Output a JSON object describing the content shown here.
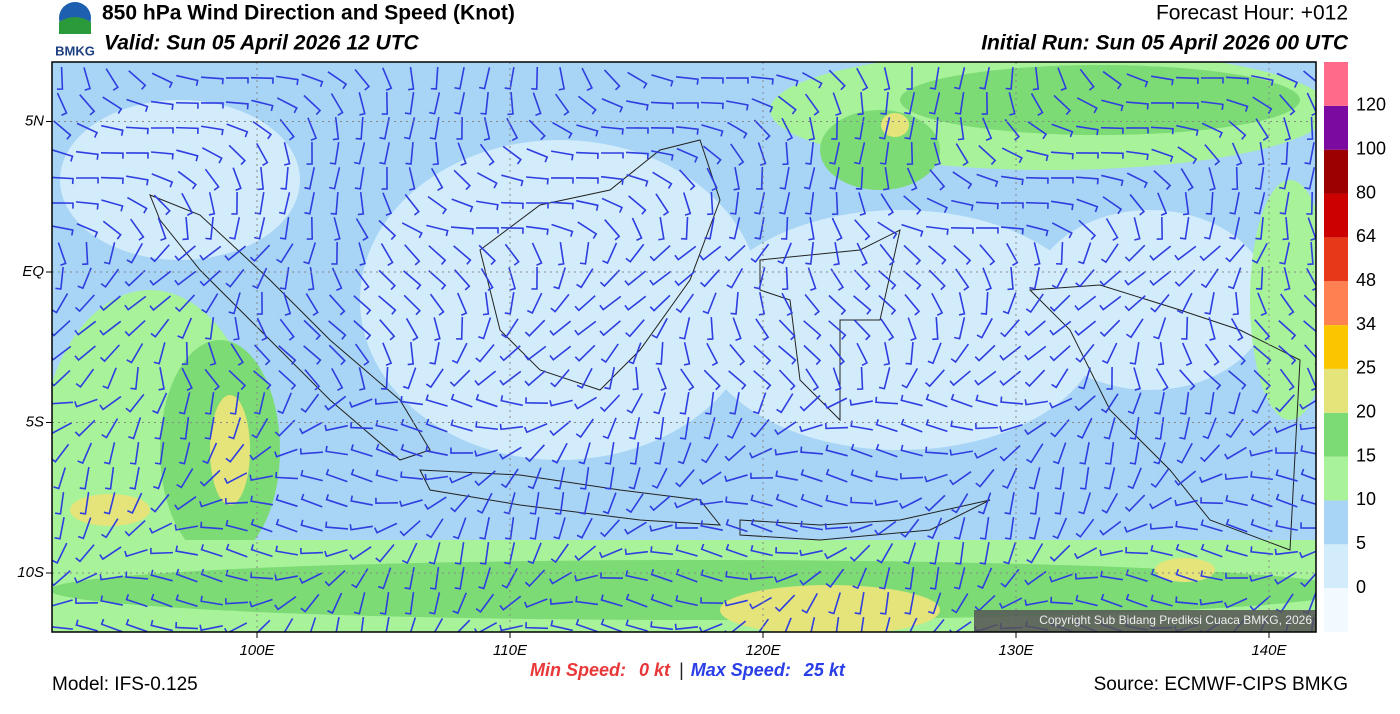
{
  "header": {
    "logo": "BMKG",
    "title": "850 hPa Wind Direction and Speed (Knot)",
    "valid": "Valid: Sun 05 April 2026 12 UTC",
    "forecast_hour": "Forecast Hour: +012",
    "initial_run": "Initial Run: Sun 05 April 2026 00 UTC"
  },
  "map": {
    "lon_ticks": [
      {
        "value": 100,
        "label": "100E"
      },
      {
        "value": 110,
        "label": "110E"
      },
      {
        "value": 120,
        "label": "120E"
      },
      {
        "value": 130,
        "label": "130E"
      },
      {
        "value": 140,
        "label": "140E"
      }
    ],
    "lat_ticks": [
      {
        "value": 5,
        "label": "5N"
      },
      {
        "value": 0,
        "label": "EQ"
      },
      {
        "value": -5,
        "label": "5S"
      },
      {
        "value": -10,
        "label": "10S"
      }
    ],
    "copyright": "Copyright Sub Bidang Prediksi Cuaca BMKG, 2026"
  },
  "colorbar": {
    "levels": [
      0,
      5,
      10,
      15,
      20,
      25,
      34,
      48,
      64,
      80,
      100,
      120
    ],
    "colors": [
      "#f2f9ff",
      "#d2ecfb",
      "#a8d5f5",
      "#a8f29a",
      "#7cdb74",
      "#e4e47a",
      "#fbc600",
      "#ff8050",
      "#e8381a",
      "#cc0000",
      "#9c0000",
      "#7a0aa0",
      "#ff6a8a"
    ]
  },
  "footer": {
    "model": "Model: IFS-0.125",
    "min_label": "Min Speed:",
    "min_value": "0 kt",
    "separator": "|",
    "max_label": "Max Speed:",
    "max_value": "25 kt",
    "source": "Source: ECMWF-CIPS BMKG"
  }
}
